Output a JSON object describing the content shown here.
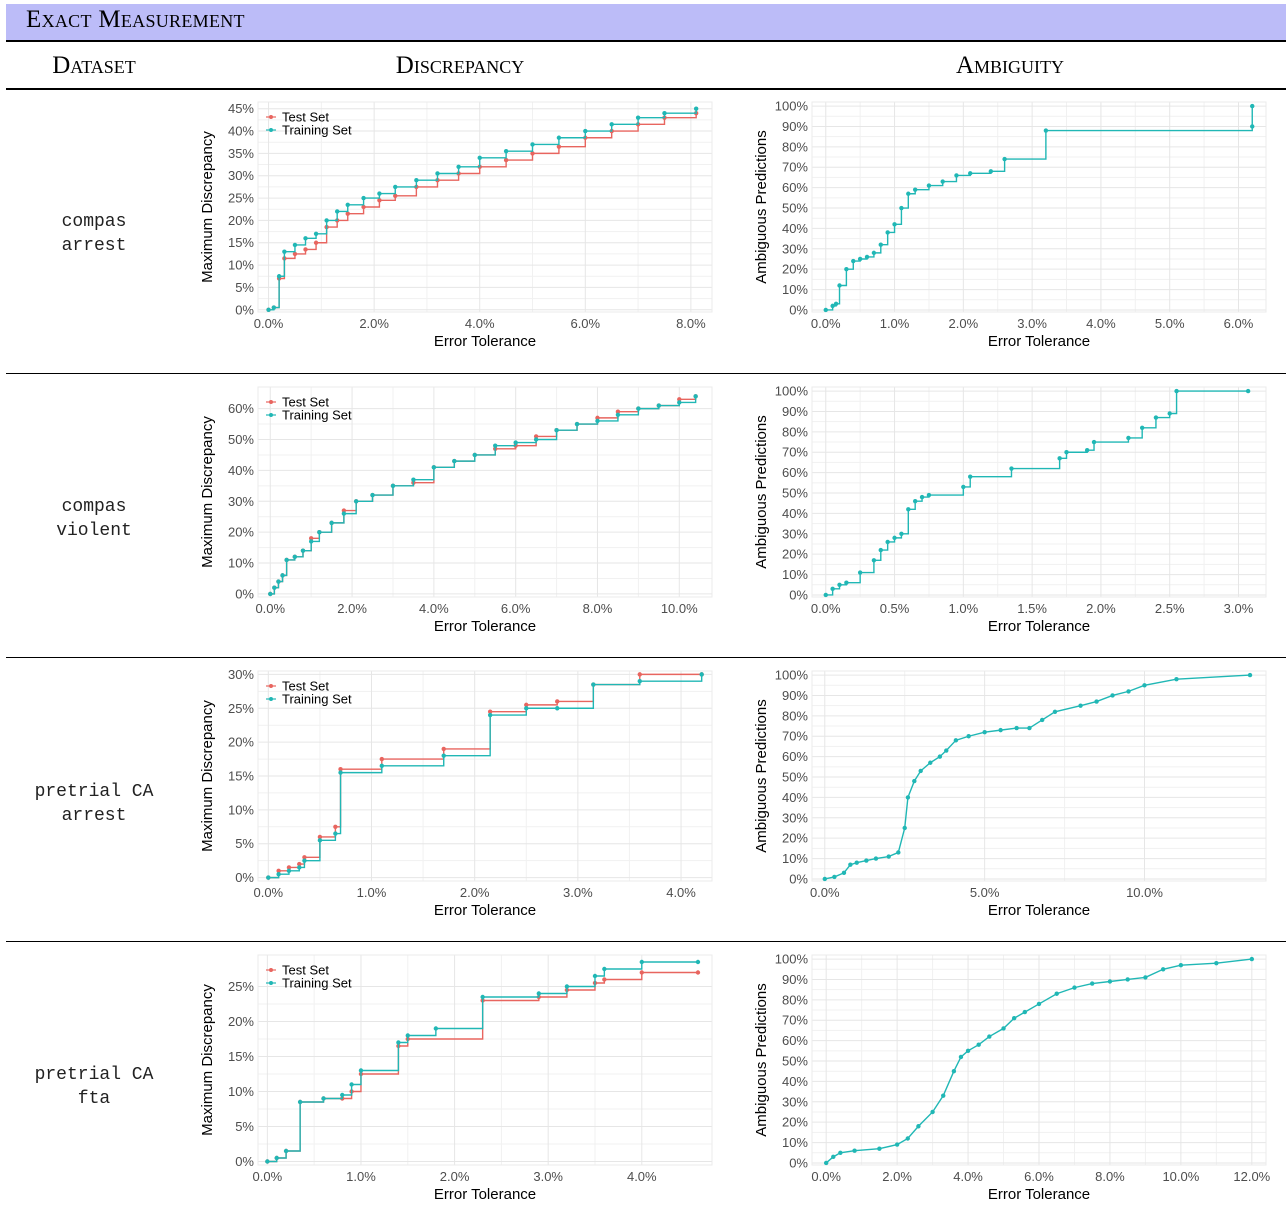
{
  "header": {
    "banner": "Exact Measurement",
    "col_dataset": "Dataset",
    "col_discrepancy": "Discrepancy",
    "col_ambiguity": "Ambiguity"
  },
  "colors": {
    "test": "#e8655f",
    "training": "#20b7b5",
    "grid": "#e6e6e6",
    "banner": "#bcbcf8"
  },
  "rows": [
    {
      "label1": "compas",
      "label2": "arrest"
    },
    {
      "label1": "compas",
      "label2": "violent"
    },
    {
      "label1": "pretrial CA",
      "label2": "arrest"
    },
    {
      "label1": "pretrial CA",
      "label2": "fta"
    }
  ],
  "chart_data": [
    {
      "id": "disc-compas-arrest",
      "type": "line",
      "xlabel": "Error Tolerance",
      "ylabel": "Maximum Discrepancy",
      "xlim": [
        -0.2,
        8.4
      ],
      "ylim": [
        -0.5,
        46.5
      ],
      "xticks": [
        0,
        2,
        4,
        6,
        8
      ],
      "xtick_labels": [
        "0.0%",
        "2.0%",
        "4.0%",
        "6.0%",
        "8.0%"
      ],
      "yticks": [
        0,
        5,
        10,
        15,
        20,
        25,
        30,
        35,
        40,
        45
      ],
      "ytick_labels": [
        "0%",
        "5%",
        "10%",
        "15%",
        "20%",
        "25%",
        "30%",
        "35%",
        "40%",
        "45%"
      ],
      "legend": "top-left",
      "grid": true,
      "series": [
        {
          "name": "Test Set",
          "color": "#e8655f",
          "step": true,
          "x": [
            0,
            0.1,
            0.2,
            0.3,
            0.5,
            0.7,
            0.9,
            1.1,
            1.3,
            1.5,
            1.8,
            2.1,
            2.4,
            2.8,
            3.2,
            3.6,
            4.0,
            4.5,
            5.0,
            5.5,
            6.0,
            6.5,
            7.0,
            7.5,
            8.1
          ],
          "y": [
            0,
            0.5,
            7,
            11.5,
            12.5,
            13.5,
            15,
            18.5,
            20,
            21.5,
            23,
            24.5,
            25.5,
            27.5,
            29,
            30.5,
            32,
            33.5,
            35,
            36.5,
            38.5,
            40,
            41.5,
            43,
            44
          ]
        },
        {
          "name": "Training Set",
          "color": "#20b7b5",
          "step": true,
          "x": [
            0,
            0.1,
            0.2,
            0.3,
            0.5,
            0.7,
            0.9,
            1.1,
            1.3,
            1.5,
            1.8,
            2.1,
            2.4,
            2.8,
            3.2,
            3.6,
            4.0,
            4.5,
            5.0,
            5.5,
            6.0,
            6.5,
            7.0,
            7.5,
            8.1
          ],
          "y": [
            0,
            0.5,
            7.5,
            13,
            14.5,
            16,
            17,
            20,
            22,
            23.5,
            25,
            26,
            27.5,
            29,
            30.5,
            32,
            34,
            35.5,
            37,
            38.5,
            40,
            41.5,
            43,
            44,
            45
          ]
        }
      ]
    },
    {
      "id": "amb-compas-arrest",
      "type": "line",
      "xlabel": "Error Tolerance",
      "ylabel": "Ambiguous Predictions",
      "xlim": [
        -0.2,
        6.4
      ],
      "ylim": [
        -1,
        102
      ],
      "xticks": [
        0,
        1,
        2,
        3,
        4,
        5,
        6
      ],
      "xtick_labels": [
        "0.0%",
        "1.0%",
        "2.0%",
        "3.0%",
        "4.0%",
        "5.0%",
        "6.0%"
      ],
      "yticks": [
        0,
        10,
        20,
        30,
        40,
        50,
        60,
        70,
        80,
        90,
        100
      ],
      "ytick_labels": [
        "0%",
        "10%",
        "20%",
        "30%",
        "40%",
        "50%",
        "60%",
        "70%",
        "80%",
        "90%",
        "100%"
      ],
      "grid": true,
      "series": [
        {
          "name": "",
          "color": "#20b7b5",
          "step": true,
          "x": [
            0,
            0.1,
            0.15,
            0.2,
            0.3,
            0.4,
            0.5,
            0.6,
            0.7,
            0.8,
            0.9,
            1.0,
            1.1,
            1.2,
            1.3,
            1.5,
            1.7,
            1.9,
            2.1,
            2.4,
            2.6,
            3.2,
            6.2,
            6.2
          ],
          "y": [
            0,
            2,
            3,
            12,
            20,
            24,
            25,
            26,
            28,
            32,
            38,
            42,
            50,
            57,
            59,
            61,
            63,
            66,
            67,
            68,
            74,
            88,
            90,
            100
          ]
        }
      ]
    },
    {
      "id": "disc-compas-violent",
      "type": "line",
      "xlabel": "Error Tolerance",
      "ylabel": "Maximum Discrepancy",
      "xlim": [
        -0.3,
        10.8
      ],
      "ylim": [
        -1,
        67
      ],
      "xticks": [
        0,
        2,
        4,
        6,
        8,
        10
      ],
      "xtick_labels": [
        "0.0%",
        "2.0%",
        "4.0%",
        "6.0%",
        "8.0%",
        "10.0%"
      ],
      "yticks": [
        0,
        10,
        20,
        30,
        40,
        50,
        60
      ],
      "ytick_labels": [
        "0%",
        "10%",
        "20%",
        "30%",
        "40%",
        "50%",
        "60%"
      ],
      "legend": "top-left",
      "grid": true,
      "series": [
        {
          "name": "Test Set",
          "color": "#e8655f",
          "step": true,
          "x": [
            0,
            0.1,
            0.2,
            0.3,
            0.4,
            0.6,
            0.8,
            1.0,
            1.2,
            1.5,
            1.8,
            2.1,
            2.5,
            3.0,
            3.5,
            4.0,
            4.5,
            5.0,
            5.5,
            6.0,
            6.5,
            7.0,
            7.5,
            8.0,
            8.5,
            9.0,
            9.5,
            10.0,
            10.4
          ],
          "y": [
            0,
            2,
            4,
            6,
            11,
            12,
            14,
            18,
            20,
            23,
            27,
            30,
            32,
            35,
            36,
            41,
            43,
            45,
            47,
            48,
            51,
            53,
            55,
            57,
            59,
            60,
            61,
            63,
            64
          ]
        },
        {
          "name": "Training Set",
          "color": "#20b7b5",
          "step": true,
          "x": [
            0,
            0.1,
            0.2,
            0.3,
            0.4,
            0.6,
            0.8,
            1.0,
            1.2,
            1.5,
            1.8,
            2.1,
            2.5,
            3.0,
            3.5,
            4.0,
            4.5,
            5.0,
            5.5,
            6.0,
            6.5,
            7.0,
            7.5,
            8.0,
            8.5,
            9.0,
            9.5,
            10.0,
            10.4
          ],
          "y": [
            0,
            2,
            4,
            6,
            11,
            12,
            14,
            17,
            20,
            23,
            26,
            30,
            32,
            35,
            37,
            41,
            43,
            45,
            48,
            49,
            50,
            53,
            55,
            56,
            58,
            60,
            61,
            62,
            64
          ]
        }
      ]
    },
    {
      "id": "amb-compas-violent",
      "type": "line",
      "xlabel": "Error Tolerance",
      "ylabel": "Ambiguous Predictions",
      "xlim": [
        -0.1,
        3.2
      ],
      "ylim": [
        -1,
        102
      ],
      "xticks": [
        0,
        0.5,
        1,
        1.5,
        2,
        2.5,
        3
      ],
      "xtick_labels": [
        "0.0%",
        "0.5%",
        "1.0%",
        "1.5%",
        "2.0%",
        "2.5%",
        "3.0%"
      ],
      "yticks": [
        0,
        10,
        20,
        30,
        40,
        50,
        60,
        70,
        80,
        90,
        100
      ],
      "ytick_labels": [
        "0%",
        "10%",
        "20%",
        "30%",
        "40%",
        "50%",
        "60%",
        "70%",
        "80%",
        "90%",
        "100%"
      ],
      "grid": true,
      "series": [
        {
          "name": "",
          "color": "#20b7b5",
          "step": true,
          "x": [
            0,
            0.05,
            0.1,
            0.15,
            0.25,
            0.35,
            0.4,
            0.45,
            0.5,
            0.55,
            0.6,
            0.65,
            0.7,
            0.75,
            1.0,
            1.05,
            1.35,
            1.7,
            1.75,
            1.9,
            1.95,
            2.2,
            2.3,
            2.4,
            2.5,
            2.55,
            3.07
          ],
          "y": [
            0,
            3,
            5,
            6,
            11,
            17,
            22,
            26,
            28,
            30,
            42,
            46,
            48,
            49,
            53,
            58,
            62,
            67,
            70,
            71,
            75,
            77,
            82,
            87,
            89,
            100,
            100
          ]
        }
      ]
    },
    {
      "id": "disc-pretrial-arrest",
      "type": "line",
      "xlabel": "Error Tolerance",
      "ylabel": "Maximum Discrepancy",
      "xlim": [
        -0.1,
        4.3
      ],
      "ylim": [
        -0.5,
        30.5
      ],
      "xticks": [
        0,
        1,
        2,
        3,
        4
      ],
      "xtick_labels": [
        "0.0%",
        "1.0%",
        "2.0%",
        "3.0%",
        "4.0%"
      ],
      "yticks": [
        0,
        5,
        10,
        15,
        20,
        25,
        30
      ],
      "ytick_labels": [
        "0%",
        "5%",
        "10%",
        "15%",
        "20%",
        "25%",
        "30%"
      ],
      "legend": "top-left",
      "grid": true,
      "series": [
        {
          "name": "Test Set",
          "color": "#e8655f",
          "step": true,
          "x": [
            0,
            0.1,
            0.2,
            0.3,
            0.35,
            0.5,
            0.65,
            0.7,
            1.1,
            1.7,
            2.15,
            2.5,
            2.8,
            3.15,
            3.6,
            4.2
          ],
          "y": [
            0,
            1,
            1.5,
            2,
            3,
            6,
            7.5,
            16,
            17.5,
            19,
            24.5,
            25.5,
            26,
            28.5,
            30,
            30
          ]
        },
        {
          "name": "Training Set",
          "color": "#20b7b5",
          "step": true,
          "x": [
            0,
            0.1,
            0.2,
            0.3,
            0.35,
            0.5,
            0.65,
            0.7,
            1.1,
            1.7,
            2.15,
            2.5,
            2.8,
            3.15,
            3.6,
            4.2
          ],
          "y": [
            0,
            0.5,
            1,
            1.5,
            2.5,
            5.5,
            6.5,
            15.5,
            16.5,
            18,
            24,
            25,
            25,
            28.5,
            29,
            30
          ]
        }
      ]
    },
    {
      "id": "amb-pretrial-arrest",
      "type": "line",
      "xlabel": "Error Tolerance",
      "ylabel": "Ambiguous Predictions",
      "xlim": [
        -0.4,
        13.8
      ],
      "ylim": [
        -1,
        102
      ],
      "xticks": [
        0,
        5,
        10
      ],
      "xtick_labels": [
        "0.0%",
        "5.0%",
        "10.0%"
      ],
      "yticks": [
        0,
        10,
        20,
        30,
        40,
        50,
        60,
        70,
        80,
        90,
        100
      ],
      "ytick_labels": [
        "0%",
        "10%",
        "20%",
        "30%",
        "40%",
        "50%",
        "60%",
        "70%",
        "80%",
        "90%",
        "100%"
      ],
      "grid": true,
      "series": [
        {
          "name": "",
          "color": "#20b7b5",
          "step": false,
          "x": [
            0,
            0.3,
            0.6,
            0.8,
            1.0,
            1.3,
            1.6,
            2.0,
            2.3,
            2.5,
            2.6,
            2.8,
            3.0,
            3.3,
            3.6,
            3.8,
            4.1,
            4.5,
            5.0,
            5.5,
            6.0,
            6.4,
            6.8,
            7.2,
            8.0,
            8.5,
            9.0,
            9.5,
            10.0,
            11.0,
            13.3
          ],
          "y": [
            0,
            1,
            3,
            7,
            8,
            9,
            10,
            11,
            13,
            25,
            40,
            48,
            53,
            57,
            60,
            63,
            68,
            70,
            72,
            73,
            74,
            74,
            78,
            82,
            85,
            87,
            90,
            92,
            95,
            98,
            100
          ]
        }
      ]
    },
    {
      "id": "disc-pretrial-fta",
      "type": "line",
      "xlabel": "Error Tolerance",
      "ylabel": "Maximum Discrepancy",
      "xlim": [
        -0.1,
        4.75
      ],
      "ylim": [
        -0.5,
        29.5
      ],
      "xticks": [
        0,
        1,
        2,
        3,
        4
      ],
      "xtick_labels": [
        "0.0%",
        "1.0%",
        "2.0%",
        "3.0%",
        "4.0%"
      ],
      "yticks": [
        0,
        5,
        10,
        15,
        20,
        25
      ],
      "ytick_labels": [
        "0%",
        "5%",
        "10%",
        "15%",
        "20%",
        "25%"
      ],
      "legend": "top-left",
      "grid": true,
      "series": [
        {
          "name": "Test Set",
          "color": "#e8655f",
          "step": true,
          "x": [
            0,
            0.1,
            0.2,
            0.35,
            0.6,
            0.8,
            0.9,
            1.0,
            1.4,
            1.5,
            2.3,
            2.9,
            3.2,
            3.5,
            3.6,
            4.0,
            4.6
          ],
          "y": [
            0,
            0.5,
            1.5,
            8.5,
            9,
            9,
            10,
            12.5,
            16.5,
            17.5,
            23,
            23.5,
            24.5,
            25.5,
            26,
            27,
            27
          ]
        },
        {
          "name": "Training Set",
          "color": "#20b7b5",
          "step": true,
          "x": [
            0,
            0.1,
            0.2,
            0.35,
            0.6,
            0.8,
            0.9,
            1.0,
            1.4,
            1.5,
            1.8,
            2.3,
            2.9,
            3.2,
            3.5,
            3.6,
            4.0,
            4.6
          ],
          "y": [
            0,
            0.5,
            1.5,
            8.5,
            9,
            9.5,
            11,
            13,
            17,
            18,
            19,
            23.5,
            24,
            25,
            26.5,
            27.5,
            28.5,
            28.5
          ]
        }
      ]
    },
    {
      "id": "amb-pretrial-fta",
      "type": "line",
      "xlabel": "Error Tolerance",
      "ylabel": "Ambiguous Predictions",
      "xlim": [
        -0.4,
        12.4
      ],
      "ylim": [
        -1,
        102
      ],
      "xticks": [
        0,
        2,
        4,
        6,
        8,
        10,
        12
      ],
      "xtick_labels": [
        "0.0%",
        "2.0%",
        "4.0%",
        "6.0%",
        "8.0%",
        "10.0%",
        "12.0%"
      ],
      "yticks": [
        0,
        10,
        20,
        30,
        40,
        50,
        60,
        70,
        80,
        90,
        100
      ],
      "ytick_labels": [
        "0%",
        "10%",
        "20%",
        "30%",
        "40%",
        "50%",
        "60%",
        "70%",
        "80%",
        "90%",
        "100%"
      ],
      "grid": true,
      "series": [
        {
          "name": "",
          "color": "#20b7b5",
          "step": false,
          "x": [
            0,
            0.2,
            0.4,
            0.8,
            1.5,
            2.0,
            2.3,
            2.6,
            3.0,
            3.3,
            3.6,
            3.8,
            4.0,
            4.3,
            4.6,
            5.0,
            5.3,
            5.6,
            6.0,
            6.5,
            7.0,
            7.5,
            8.0,
            8.5,
            9.0,
            9.5,
            10.0,
            11.0,
            12.0
          ],
          "y": [
            0,
            3,
            5,
            6,
            7,
            9,
            12,
            18,
            25,
            33,
            45,
            52,
            55,
            58,
            62,
            66,
            71,
            74,
            78,
            83,
            86,
            88,
            89,
            90,
            91,
            95,
            97,
            98,
            100
          ]
        }
      ]
    }
  ]
}
